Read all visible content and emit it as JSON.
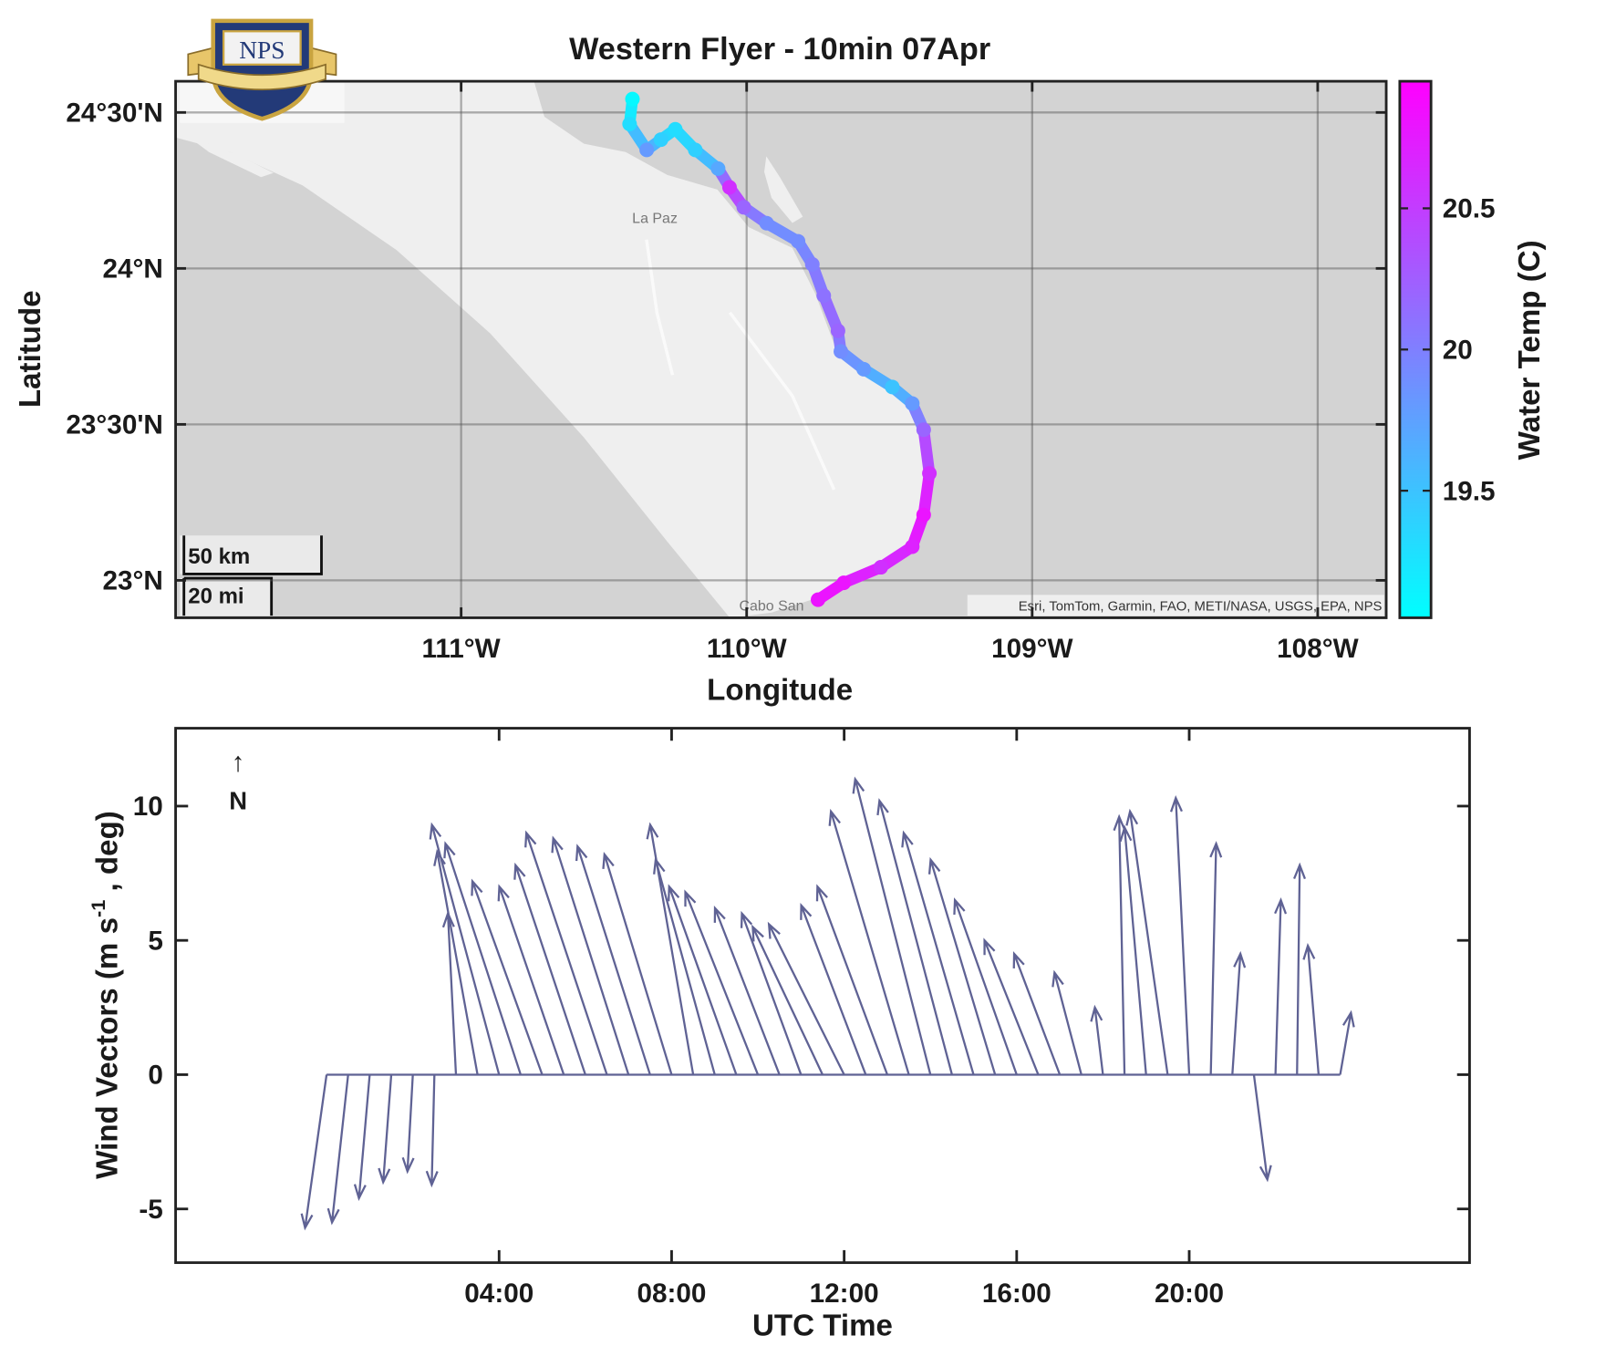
{
  "logo_text": "NPS",
  "chart_data": [
    {
      "type": "scatter",
      "title": "Western Flyer - 10min 07Apr",
      "xlabel": "Longitude",
      "ylabel": "Latitude",
      "colorbar_label": "Water Temp (C)",
      "colormap": "cool",
      "place_labels": [
        "La Paz",
        "Cabo San"
      ],
      "attribution": "Esri, TomTom, Garmin, FAO, METI/NASA, USGS, EPA, NPS",
      "scale_labels": [
        "50 km",
        "20 mi"
      ],
      "x": [
        -110.4,
        -110.41,
        -110.35,
        -110.3,
        -110.25,
        -110.18,
        -110.1,
        -110.06,
        -110.01,
        -109.93,
        -109.82,
        -109.77,
        -109.73,
        -109.68,
        -109.67,
        -109.59,
        -109.49,
        -109.42,
        -109.38,
        -109.36,
        -109.38,
        -109.42,
        -109.53,
        -109.66,
        -109.75
      ],
      "y": [
        24.543,
        24.463,
        24.38,
        24.413,
        24.446,
        24.38,
        24.32,
        24.26,
        24.196,
        24.145,
        24.087,
        24.013,
        23.913,
        23.8,
        23.734,
        23.677,
        23.62,
        23.567,
        23.483,
        23.343,
        23.21,
        23.108,
        23.042,
        22.992,
        22.938
      ],
      "c": [
        19.1,
        19.3,
        19.8,
        19.4,
        19.3,
        19.4,
        19.7,
        20.6,
        20.2,
        19.9,
        19.9,
        20.0,
        20.1,
        20.2,
        19.9,
        19.8,
        19.5,
        19.8,
        20.2,
        20.6,
        20.8,
        20.7,
        20.6,
        20.8,
        20.8
      ],
      "xlim": [
        -112,
        -107.76
      ],
      "ylim": [
        22.88,
        24.6
      ],
      "clim": [
        19.05,
        20.95
      ],
      "xticks": [
        {
          "value": -111,
          "label": "111°W"
        },
        {
          "value": -110,
          "label": "110°W"
        },
        {
          "value": -109,
          "label": "109°W"
        },
        {
          "value": -108,
          "label": "108°W"
        }
      ],
      "yticks": [
        {
          "value": 23,
          "label": "23°N"
        },
        {
          "value": 23.5,
          "label": "23°30'N"
        },
        {
          "value": 24,
          "label": "24°N"
        },
        {
          "value": 24.5,
          "label": "24°30'N"
        }
      ],
      "cticks": [
        19.5,
        20,
        20.5
      ],
      "grid": true
    },
    {
      "type": "quiver",
      "xlabel": "UTC Time",
      "ylabel": [
        "Wind Vectors (m s",
        "-1",
        " , deg)"
      ],
      "north_arrow": "↑",
      "north_label": "N",
      "color": "#5f6294",
      "x": [
        0,
        0.5,
        1,
        1.5,
        2,
        2.5,
        3,
        3.5,
        4,
        4.5,
        5,
        5.5,
        6,
        6.5,
        7,
        7.5,
        8,
        8.5,
        9,
        9.5,
        10,
        10.5,
        11,
        11.5,
        12,
        12.5,
        13,
        13.5,
        14,
        14.5,
        15,
        15.5,
        16,
        16.5,
        17,
        17.5,
        18,
        18.5,
        19,
        19.5,
        20,
        20.5,
        21,
        21.5,
        22,
        22.5,
        23,
        23.5
      ],
      "u": [
        -0.8,
        -0.6,
        -0.4,
        -0.3,
        -0.2,
        -0.1,
        -0.3,
        -1.5,
        -2.5,
        -2.8,
        -2.6,
        -2.4,
        -2.6,
        -3.0,
        -2.8,
        -2.7,
        -2.5,
        -1.6,
        -2.2,
        -2.5,
        -2.7,
        -2.4,
        -2.2,
        -2.6,
        -2.8,
        -2.4,
        -2.6,
        -2.9,
        -2.8,
        -2.7,
        -2.6,
        -2.4,
        -2.3,
        -2.0,
        -1.7,
        -1.0,
        -0.3,
        -0.2,
        -0.8,
        -1.4,
        -0.5,
        0.2,
        0.3,
        0.5,
        0.2,
        0.1,
        -0.4,
        0.4
      ],
      "v": [
        -5.7,
        -5.5,
        -4.6,
        -4.0,
        -3.6,
        -4.1,
        6.0,
        8.3,
        9.3,
        8.6,
        7.2,
        7.0,
        7.8,
        9.0,
        8.8,
        8.5,
        8.2,
        9.3,
        8.0,
        7.0,
        6.8,
        6.2,
        6.0,
        5.5,
        5.6,
        6.3,
        7.0,
        9.8,
        11.0,
        10.2,
        9.0,
        8.0,
        6.5,
        5.0,
        4.5,
        3.8,
        2.5,
        9.6,
        9.2,
        9.8,
        10.3,
        8.6,
        4.5,
        -3.9,
        6.5,
        7.8,
        4.8,
        2.3
      ],
      "xlim": [
        -3.5,
        26.5
      ],
      "ylim": [
        -7,
        12.9
      ],
      "xticks": [
        {
          "value": 4,
          "label": "04:00"
        },
        {
          "value": 8,
          "label": "08:00"
        },
        {
          "value": 12,
          "label": "12:00"
        },
        {
          "value": 16,
          "label": "16:00"
        },
        {
          "value": 20,
          "label": "20:00"
        }
      ],
      "yticks": [
        -5,
        0,
        5,
        10
      ]
    }
  ]
}
